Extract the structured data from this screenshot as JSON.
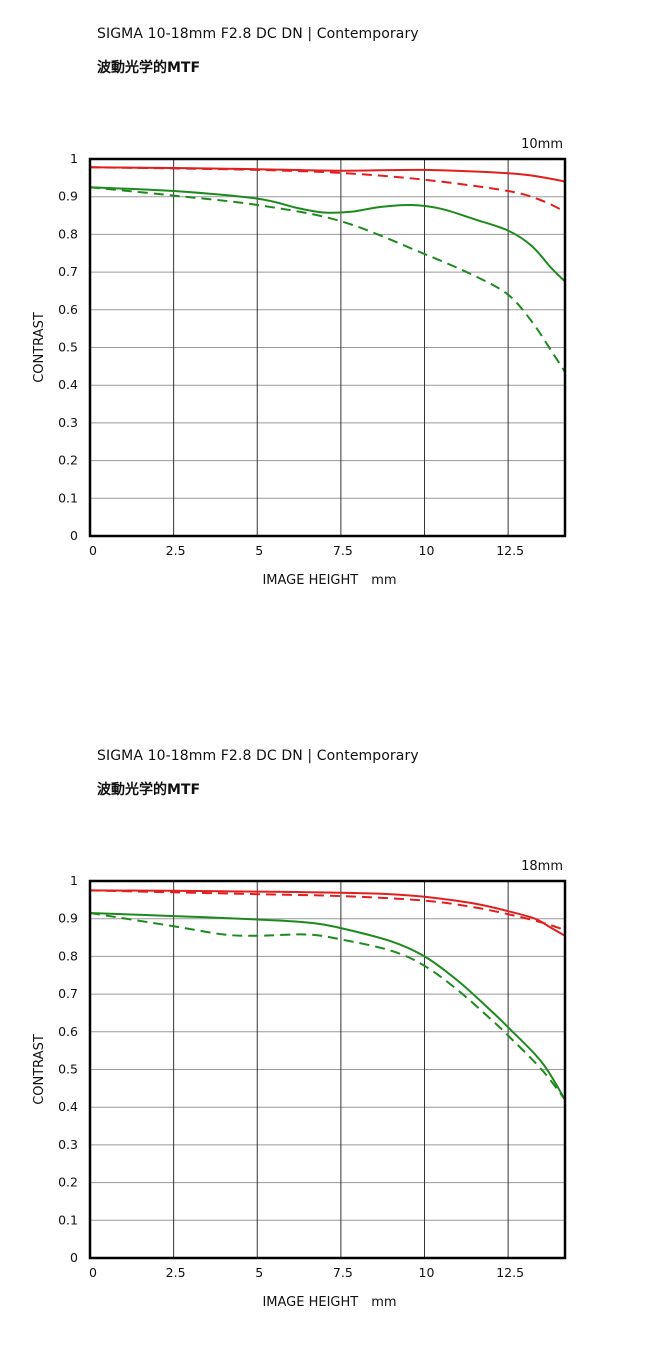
{
  "chart_data": [
    {
      "type": "line",
      "title": "SIGMA 10-18mm F2.8 DC DN | Contemporary",
      "subtitle": "波動光学的MTF",
      "focal_label": "10mm",
      "xlabel": "IMAGE HEIGHT　mm",
      "ylabel": "CONTRAST",
      "xlim": [
        0,
        14.2
      ],
      "ylim": [
        0,
        1
      ],
      "x_ticks": [
        "0",
        "2.5",
        "5",
        "7.5",
        "10",
        "12.5"
      ],
      "y_ticks": [
        "0",
        "0.1",
        "0.2",
        "0.3",
        "0.4",
        "0.5",
        "0.6",
        "0.7",
        "0.8",
        "0.9",
        "1"
      ],
      "grid": true,
      "series": [
        {
          "color": "#e31e1e",
          "dash": false,
          "points": [
            [
              0,
              0.978
            ],
            [
              2.5,
              0.976
            ],
            [
              5,
              0.973
            ],
            [
              7.5,
              0.969
            ],
            [
              10,
              0.971
            ],
            [
              12.5,
              0.962
            ],
            [
              13.5,
              0.952
            ],
            [
              14.2,
              0.94
            ]
          ]
        },
        {
          "color": "#e31e1e",
          "dash": true,
          "points": [
            [
              0,
              0.978
            ],
            [
              2.5,
              0.975
            ],
            [
              5,
              0.971
            ],
            [
              7.5,
              0.963
            ],
            [
              10,
              0.945
            ],
            [
              12.5,
              0.915
            ],
            [
              13.5,
              0.89
            ],
            [
              14.2,
              0.86
            ]
          ]
        },
        {
          "color": "#1e8a1e",
          "dash": false,
          "points": [
            [
              0,
              0.925
            ],
            [
              2.5,
              0.915
            ],
            [
              5,
              0.895
            ],
            [
              6.2,
              0.87
            ],
            [
              7,
              0.858
            ],
            [
              7.8,
              0.86
            ],
            [
              8.7,
              0.873
            ],
            [
              9.6,
              0.878
            ],
            [
              10.5,
              0.868
            ],
            [
              11.5,
              0.84
            ],
            [
              12.5,
              0.81
            ],
            [
              13.2,
              0.77
            ],
            [
              13.8,
              0.71
            ],
            [
              14.2,
              0.675
            ]
          ]
        },
        {
          "color": "#1e8a1e",
          "dash": true,
          "points": [
            [
              0,
              0.925
            ],
            [
              2.5,
              0.903
            ],
            [
              5,
              0.878
            ],
            [
              7.5,
              0.835
            ],
            [
              10,
              0.748
            ],
            [
              11.5,
              0.69
            ],
            [
              12.5,
              0.64
            ],
            [
              13.2,
              0.57
            ],
            [
              13.8,
              0.49
            ],
            [
              14.2,
              0.435
            ]
          ]
        }
      ]
    },
    {
      "type": "line",
      "title": "SIGMA 10-18mm F2.8 DC DN | Contemporary",
      "subtitle": "波動光学的MTF",
      "focal_label": "18mm",
      "xlabel": "IMAGE HEIGHT　mm",
      "ylabel": "CONTRAST",
      "xlim": [
        0,
        14.2
      ],
      "ylim": [
        0,
        1
      ],
      "x_ticks": [
        "0",
        "2.5",
        "5",
        "7.5",
        "10",
        "12.5"
      ],
      "y_ticks": [
        "0",
        "0.1",
        "0.2",
        "0.3",
        "0.4",
        "0.5",
        "0.6",
        "0.7",
        "0.8",
        "0.9",
        "1"
      ],
      "grid": true,
      "series": [
        {
          "color": "#e31e1e",
          "dash": false,
          "points": [
            [
              0,
              0.975
            ],
            [
              2.5,
              0.974
            ],
            [
              5,
              0.972
            ],
            [
              7.5,
              0.969
            ],
            [
              9,
              0.965
            ],
            [
              10,
              0.958
            ],
            [
              11.5,
              0.94
            ],
            [
              12.5,
              0.92
            ],
            [
              13.3,
              0.9
            ],
            [
              13.8,
              0.875
            ],
            [
              14.2,
              0.855
            ]
          ]
        },
        {
          "color": "#e31e1e",
          "dash": true,
          "points": [
            [
              0,
              0.975
            ],
            [
              2.5,
              0.97
            ],
            [
              5,
              0.965
            ],
            [
              7.5,
              0.96
            ],
            [
              10,
              0.948
            ],
            [
              11.5,
              0.93
            ],
            [
              12.5,
              0.912
            ],
            [
              13.3,
              0.895
            ],
            [
              13.8,
              0.882
            ],
            [
              14.2,
              0.87
            ]
          ]
        },
        {
          "color": "#1e8a1e",
          "dash": false,
          "points": [
            [
              0,
              0.915
            ],
            [
              2.5,
              0.907
            ],
            [
              5,
              0.898
            ],
            [
              6.5,
              0.89
            ],
            [
              7.5,
              0.875
            ],
            [
              9,
              0.84
            ],
            [
              10,
              0.8
            ],
            [
              11,
              0.735
            ],
            [
              12,
              0.655
            ],
            [
              12.5,
              0.612
            ],
            [
              13.5,
              0.52
            ],
            [
              14.2,
              0.42
            ]
          ]
        },
        {
          "color": "#1e8a1e",
          "dash": true,
          "points": [
            [
              0,
              0.915
            ],
            [
              2.5,
              0.88
            ],
            [
              4,
              0.858
            ],
            [
              5,
              0.855
            ],
            [
              6.5,
              0.858
            ],
            [
              7.5,
              0.845
            ],
            [
              9,
              0.815
            ],
            [
              10,
              0.775
            ],
            [
              11,
              0.71
            ],
            [
              12,
              0.632
            ],
            [
              12.5,
              0.59
            ],
            [
              13.5,
              0.5
            ],
            [
              14.2,
              0.42
            ]
          ]
        }
      ]
    }
  ]
}
